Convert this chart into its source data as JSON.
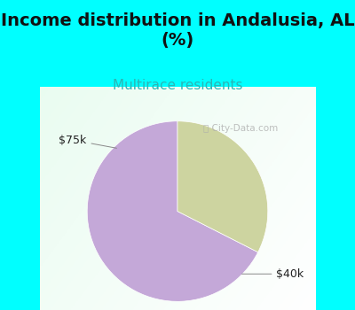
{
  "title": "Income distribution in Andalusia, AL\n(%)",
  "subtitle": "Multirace residents",
  "slices": [
    0.675,
    0.325
  ],
  "labels": [
    "$40k",
    "$75k"
  ],
  "colors": [
    "#c4a8d8",
    "#cdd4a0"
  ],
  "label_colors": [
    "#222222",
    "#222222"
  ],
  "bg_color": "#00ffff",
  "title_fontsize": 14,
  "subtitle_fontsize": 11,
  "subtitle_color": "#2ab5b5",
  "title_color": "#111111",
  "startangle": 90,
  "watermark": "City-Data.com",
  "watermark_color": "#aaaaaa"
}
